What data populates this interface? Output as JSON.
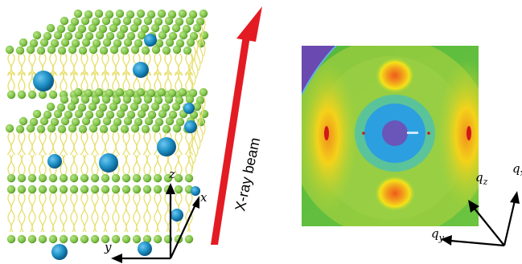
{
  "figure": {
    "beam_label": "X-ray beam",
    "left_axes": {
      "z": "z",
      "x": "x",
      "y": "y"
    },
    "right_axes": {
      "qz": "q",
      "qz_sub": "z",
      "qy": "q",
      "qy_sub": "y",
      "qx": "q",
      "qx_sub": "x"
    },
    "colors": {
      "beam_arrow": "#e31b23",
      "lipid_head": "#7cc142",
      "lipid_tail": "#e8e070",
      "ion_sphere": "#1c8fc4",
      "pattern_background": "#72c43c",
      "pattern_center": "#5b5bb0",
      "pattern_ring": "#32a8dc",
      "pattern_peak_orange": "#f08a1c",
      "pattern_peak_yellow": "#f4e21a",
      "pattern_corner": "#6a4ab0"
    },
    "icons": [
      "lipid-bilayer-stack",
      "beam-arrow",
      "diffraction-pattern"
    ]
  }
}
